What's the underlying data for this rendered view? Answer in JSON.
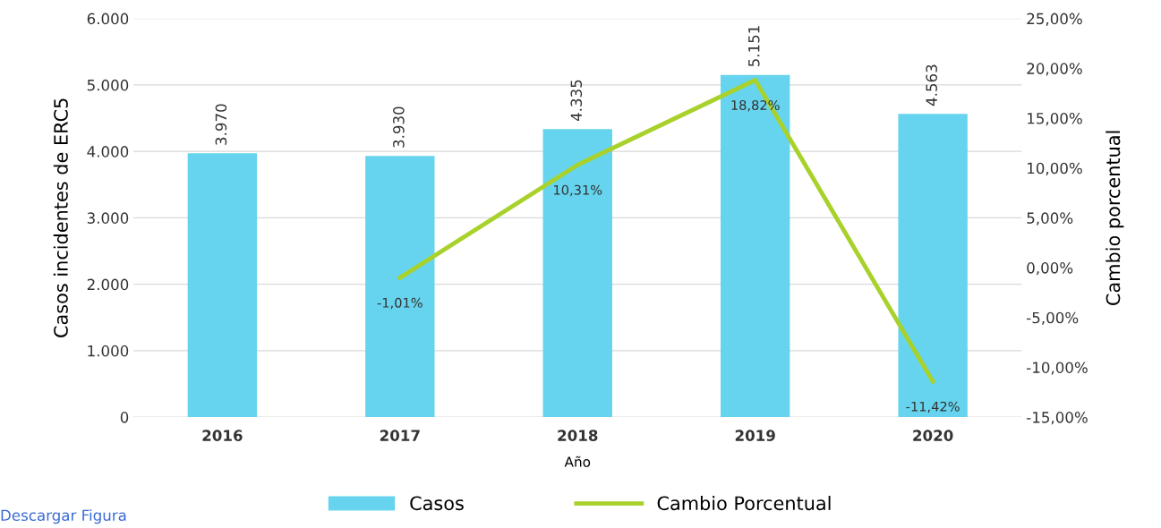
{
  "chart_data": {
    "type": "bar",
    "categories": [
      "2016",
      "2017",
      "2018",
      "2019",
      "2020"
    ],
    "xlabel": "Año",
    "ylabel": "Casos incidentes de ERC5",
    "y2label": "Cambio porcentual",
    "series": [
      {
        "name": "Casos",
        "color": "#66d4ee",
        "values": [
          3970,
          3930,
          4335,
          5151,
          4563
        ],
        "value_labels": [
          "3.970",
          "3.930",
          "4.335",
          "5.151",
          "4.563"
        ]
      },
      {
        "name": "Cambio Porcentual",
        "type": "line",
        "axis": "y2",
        "color": "#a8d22b",
        "values": [
          null,
          -1.01,
          10.31,
          18.82,
          -11.42
        ],
        "value_labels": [
          null,
          "-1,01%",
          "10,31%",
          "18,82%",
          "-11,42%"
        ]
      }
    ],
    "ylim": [
      0,
      6000
    ],
    "yticks": [
      0,
      {
        "value": 1000,
        "label": "1.000"
      },
      {
        "value": 2000,
        "label": "2.000"
      },
      {
        "value": 3000,
        "label": "3.000"
      },
      {
        "value": 4000,
        "label": "4.000"
      },
      {
        "value": 5000,
        "label": "5.000"
      },
      {
        "value": 6000,
        "label": "6.000"
      }
    ],
    "y2lim": [
      -15,
      25
    ],
    "y2ticks": [
      {
        "value": -15,
        "label": "-15,00%"
      },
      {
        "value": -10,
        "label": "-10,00%"
      },
      {
        "value": -5,
        "label": "-5,00%"
      },
      {
        "value": 0,
        "label": "0,00%"
      },
      {
        "value": 5,
        "label": "5,00%"
      },
      {
        "value": 10,
        "label": "10,00%"
      },
      {
        "value": 15,
        "label": "15,00%"
      },
      {
        "value": 20,
        "label": "20,00%"
      },
      {
        "value": 25,
        "label": "25,00%"
      }
    ],
    "grid": "y",
    "legend": "bottom",
    "marker": "none",
    "line_style": "solid",
    "annotations": [
      "Descargar Figura"
    ]
  }
}
